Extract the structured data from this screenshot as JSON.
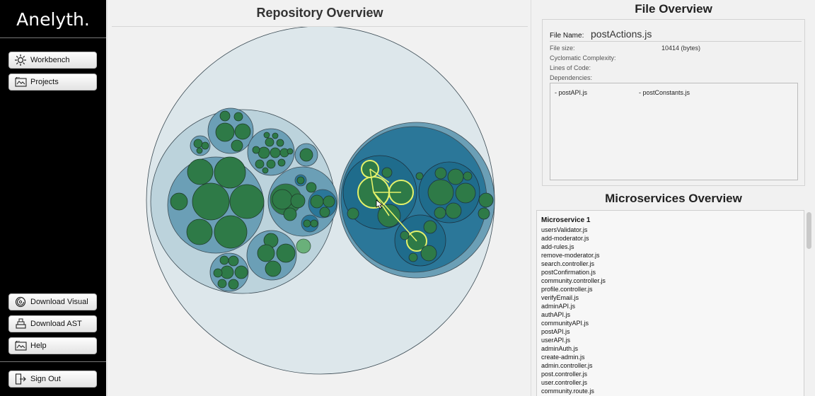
{
  "sidebar": {
    "brand": "Anelyth.",
    "nav": [
      {
        "label": "Workbench",
        "icon": "workbench-icon"
      },
      {
        "label": "Projects",
        "icon": "projects-icon"
      }
    ],
    "bottom": [
      {
        "label": "Download Visual",
        "icon": "download-visual-icon"
      },
      {
        "label": "Download AST",
        "icon": "download-ast-icon"
      },
      {
        "label": "Help",
        "icon": "help-icon"
      }
    ],
    "sign_out": "Sign Out"
  },
  "repository": {
    "title": "Repository Overview"
  },
  "file_overview": {
    "title": "File Overview",
    "file_name_label": "File Name:",
    "file_name": "postActions.js",
    "file_size_label": "File size:",
    "file_size": "10414 (bytes)",
    "complexity_label": "Cyclomatic Complexity:",
    "loc_label": "Lines of Code:",
    "dependencies_label": "Dependencies:",
    "dependencies": [
      "- postAPI.js",
      "- postConstants.js"
    ]
  },
  "microservices": {
    "title": "Microservices Overview",
    "group_title": "Microservice 1",
    "files": [
      "usersValidator.js",
      "add-moderator.js",
      "add-rules.js",
      "remove-moderator.js",
      "search.controller.js",
      "postConfirmation.js",
      "community.controller.js",
      "profile.controller.js",
      "verifyEmail.js",
      "adminAPI.js",
      "authAPI.js",
      "communityAPI.js",
      "postAPI.js",
      "userAPI.js",
      "adminAuth.js",
      "create-admin.js",
      "admin.controller.js",
      "post.controller.js",
      "user.controller.js",
      "community.route.js"
    ]
  },
  "colors": {
    "outer_bubble": "#dce6ea",
    "group_light": "#b9d1db",
    "group_mid": "#6a9eb6",
    "group_dark": "#2b7799",
    "file_node": "#2e7a47",
    "highlight": "#e5f26a"
  }
}
